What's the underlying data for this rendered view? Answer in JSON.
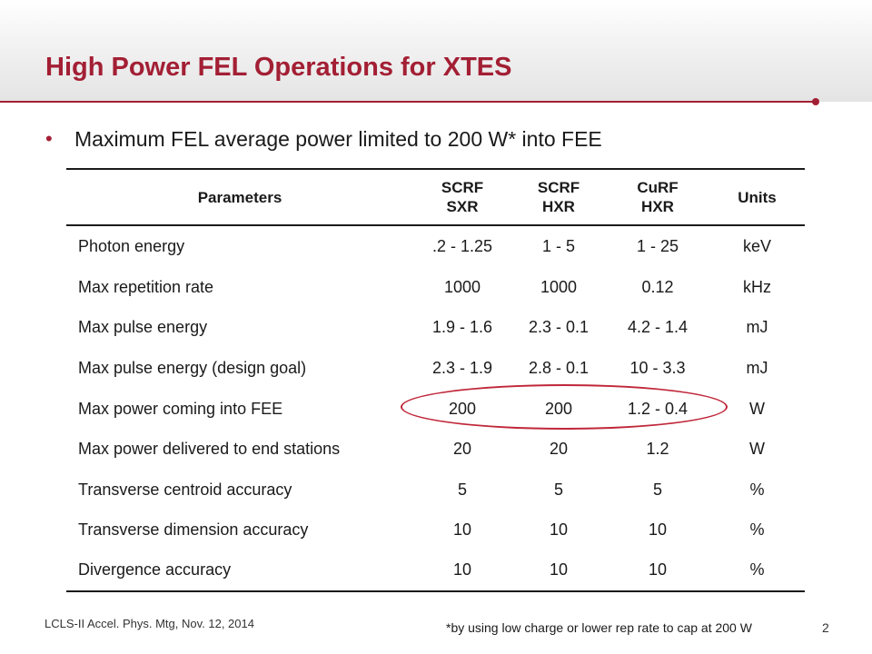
{
  "slide": {
    "title": "High Power FEL Operations for XTES",
    "bullet": "Maximum FEL average power limited to 200 W* into FEE",
    "bullet_marker": "•",
    "accent_color": "#a31f34"
  },
  "table": {
    "headers": [
      {
        "lines": [
          "Parameters"
        ]
      },
      {
        "lines": [
          "SCRF",
          "SXR"
        ]
      },
      {
        "lines": [
          "SCRF",
          "HXR"
        ]
      },
      {
        "lines": [
          "CuRF",
          "HXR"
        ]
      },
      {
        "lines": [
          "Units"
        ]
      }
    ],
    "rows": [
      [
        "Photon energy",
        ".2 - 1.25",
        "1 - 5",
        "1 - 25",
        "keV"
      ],
      [
        "Max repetition rate",
        "1000",
        "1000",
        "0.12",
        "kHz"
      ],
      [
        "Max pulse energy",
        "1.9 - 1.6",
        "2.3 - 0.1",
        "4.2 - 1.4",
        "mJ"
      ],
      [
        "Max pulse energy (design goal)",
        "2.3 - 1.9",
        "2.8 - 0.1",
        "10 - 3.3",
        "mJ"
      ],
      [
        "Max power coming into FEE",
        "200",
        "200",
        "1.2 - 0.4",
        "W"
      ],
      [
        "Max power delivered to end stations",
        "20",
        "20",
        "1.2",
        "W"
      ],
      [
        "Transverse centroid accuracy",
        "5",
        "5",
        "5",
        "%"
      ],
      [
        "Transverse dimension accuracy",
        "10",
        "10",
        "10",
        "%"
      ],
      [
        "Divergence accuracy",
        "10",
        "10",
        "10",
        "%"
      ]
    ],
    "highlight_color": "#c0283a"
  },
  "footer": {
    "left": "LCLS-II Accel. Phys. Mtg, Nov. 12, 2014",
    "footnote": "*by using low charge or lower rep rate to cap at 200 W",
    "page_number": "2"
  }
}
